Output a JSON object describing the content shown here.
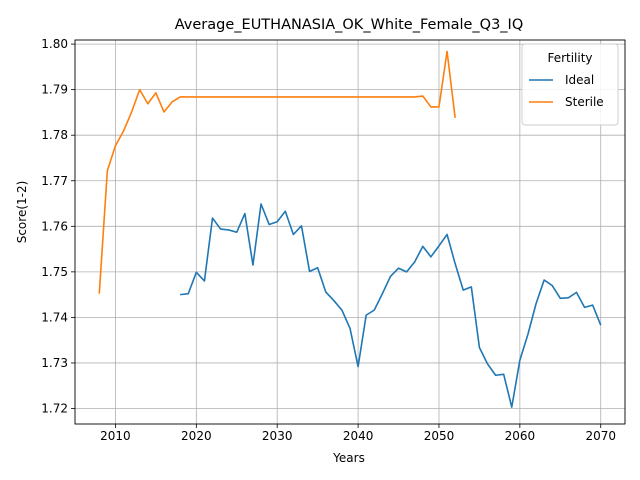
{
  "chart_data": {
    "type": "line",
    "title": "Average_EUTHANASIA_OK_White_Female_Q3_IQ",
    "xlabel": "Years",
    "ylabel": "Score(1-2)",
    "xlim": [
      2005,
      2073
    ],
    "ylim": [
      1.7166,
      1.8009
    ],
    "xticks": [
      2010,
      2020,
      2030,
      2040,
      2050,
      2060,
      2070
    ],
    "xtick_labels": [
      "2010",
      "2020",
      "2030",
      "2040",
      "2050",
      "2060",
      "2070"
    ],
    "yticks": [
      1.72,
      1.73,
      1.74,
      1.75,
      1.76,
      1.77,
      1.78,
      1.79,
      1.8
    ],
    "ytick_labels": [
      "1.72",
      "1.73",
      "1.74",
      "1.75",
      "1.76",
      "1.77",
      "1.78",
      "1.79",
      "1.80"
    ],
    "grid": true,
    "legend": {
      "title": "Fertility",
      "position": "top-right"
    },
    "series": [
      {
        "name": "Ideal",
        "color": "#1f77b4",
        "x": [
          2018,
          2019,
          2020,
          2021,
          2022,
          2023,
          2024,
          2025,
          2026,
          2027,
          2028,
          2029,
          2030,
          2031,
          2032,
          2033,
          2034,
          2035,
          2036,
          2037,
          2038,
          2039,
          2040,
          2041,
          2042,
          2043,
          2044,
          2045,
          2046,
          2047,
          2048,
          2049,
          2050,
          2051,
          2052,
          2053,
          2054,
          2055,
          2056,
          2057,
          2058,
          2059,
          2060,
          2061,
          2062,
          2063,
          2064,
          2065,
          2066,
          2067,
          2068,
          2069,
          2070
        ],
        "y": [
          1.745,
          1.7452,
          1.7499,
          1.748,
          1.7618,
          1.7594,
          1.7592,
          1.7587,
          1.7628,
          1.7515,
          1.7649,
          1.7604,
          1.761,
          1.7633,
          1.7582,
          1.7601,
          1.7501,
          1.7509,
          1.7456,
          1.7437,
          1.7416,
          1.7376,
          1.7292,
          1.7405,
          1.7416,
          1.7452,
          1.749,
          1.7508,
          1.75,
          1.7522,
          1.7556,
          1.7533,
          1.7557,
          1.7582,
          1.7518,
          1.746,
          1.7467,
          1.7334,
          1.7298,
          1.7273,
          1.7275,
          1.7203,
          1.7306,
          1.7363,
          1.743,
          1.7482,
          1.747,
          1.7442,
          1.7443,
          1.7455,
          1.7422,
          1.7427,
          1.7383
        ]
      },
      {
        "name": "Sterile",
        "color": "#ff7f0e",
        "x": [
          2008,
          2009,
          2010,
          2011,
          2012,
          2013,
          2014,
          2015,
          2016,
          2017,
          2018,
          2019,
          2020,
          2021,
          2022,
          2023,
          2024,
          2025,
          2026,
          2027,
          2028,
          2029,
          2030,
          2031,
          2032,
          2033,
          2034,
          2035,
          2036,
          2037,
          2038,
          2039,
          2040,
          2041,
          2042,
          2043,
          2044,
          2045,
          2046,
          2047,
          2048,
          2049,
          2050,
          2051,
          2052
        ],
        "y": [
          1.7452,
          1.7722,
          1.7777,
          1.7809,
          1.7851,
          1.79,
          1.7869,
          1.7893,
          1.7851,
          1.7873,
          1.7884,
          1.7884,
          1.7884,
          1.7884,
          1.7884,
          1.7884,
          1.7884,
          1.7884,
          1.7884,
          1.7884,
          1.7884,
          1.7884,
          1.7884,
          1.7884,
          1.7884,
          1.7884,
          1.7884,
          1.7884,
          1.7884,
          1.7884,
          1.7884,
          1.7884,
          1.7884,
          1.7884,
          1.7884,
          1.7884,
          1.7884,
          1.7884,
          1.7884,
          1.7884,
          1.7886,
          1.7862,
          1.7862,
          1.7984,
          1.7838
        ]
      }
    ]
  }
}
